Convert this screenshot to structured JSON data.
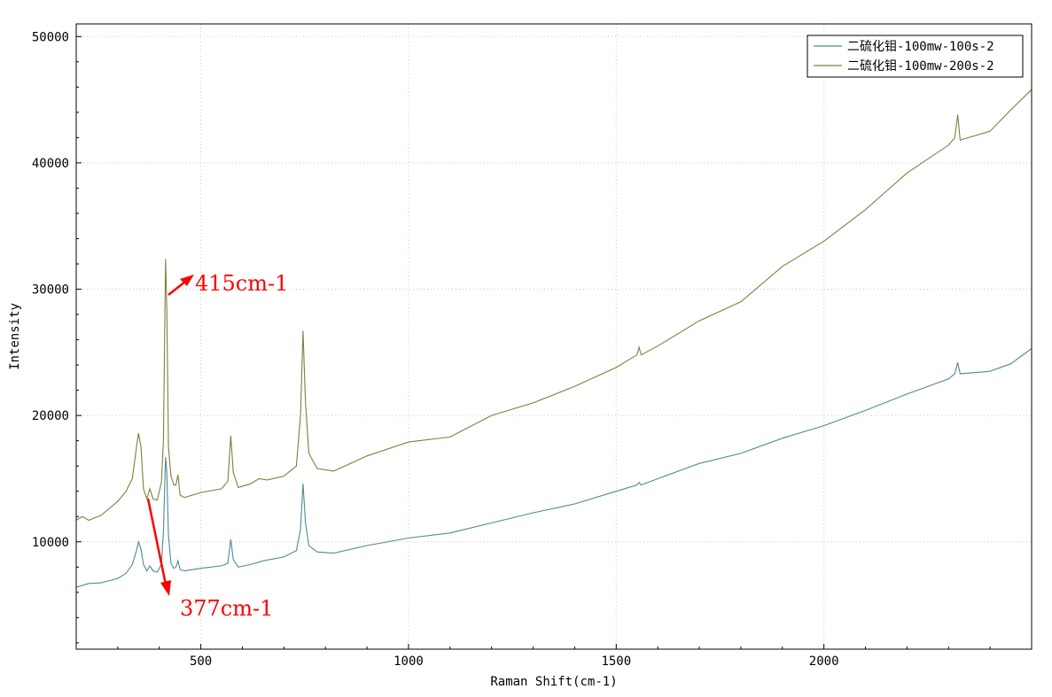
{
  "chart_data": {
    "type": "line",
    "title": "",
    "xlabel": "Raman Shift(cm-1)",
    "ylabel": "Intensity",
    "xlim": [
      200,
      2500
    ],
    "ylim": [
      1500,
      51000
    ],
    "x_ticks": [
      500,
      1000,
      1500,
      2000
    ],
    "x_tick_labels": [
      "500",
      "1000",
      "1500",
      "2000"
    ],
    "y_ticks": [
      10000,
      20000,
      30000,
      40000,
      50000
    ],
    "y_tick_labels": [
      "10000",
      "20000",
      "30000",
      "40000",
      "50000"
    ],
    "grid": true,
    "legend_position": "top-right",
    "series": [
      {
        "name": "二硫化钼-100mw-100s-2",
        "color": "#4e8a95",
        "points": [
          [
            200,
            6400
          ],
          [
            230,
            6700
          ],
          [
            260,
            6750
          ],
          [
            300,
            7100
          ],
          [
            320,
            7500
          ],
          [
            335,
            8200
          ],
          [
            345,
            9300
          ],
          [
            350,
            10000
          ],
          [
            356,
            9400
          ],
          [
            362,
            8200
          ],
          [
            370,
            7700
          ],
          [
            377,
            8100
          ],
          [
            385,
            7700
          ],
          [
            395,
            7600
          ],
          [
            405,
            8200
          ],
          [
            410,
            10800
          ],
          [
            415,
            16700
          ],
          [
            418,
            15500
          ],
          [
            422,
            10500
          ],
          [
            428,
            8300
          ],
          [
            435,
            7900
          ],
          [
            440,
            8000
          ],
          [
            445,
            8500
          ],
          [
            450,
            7800
          ],
          [
            460,
            7700
          ],
          [
            500,
            7900
          ],
          [
            550,
            8100
          ],
          [
            565,
            8300
          ],
          [
            572,
            10200
          ],
          [
            578,
            8600
          ],
          [
            590,
            8000
          ],
          [
            620,
            8200
          ],
          [
            650,
            8500
          ],
          [
            700,
            8800
          ],
          [
            730,
            9300
          ],
          [
            740,
            11000
          ],
          [
            746,
            14600
          ],
          [
            752,
            11500
          ],
          [
            760,
            9700
          ],
          [
            780,
            9200
          ],
          [
            820,
            9100
          ],
          [
            900,
            9700
          ],
          [
            1000,
            10300
          ],
          [
            1100,
            10700
          ],
          [
            1200,
            11500
          ],
          [
            1300,
            12300
          ],
          [
            1400,
            13000
          ],
          [
            1500,
            14000
          ],
          [
            1550,
            14500
          ],
          [
            1555,
            14700
          ],
          [
            1560,
            14500
          ],
          [
            1600,
            15000
          ],
          [
            1700,
            16200
          ],
          [
            1800,
            17000
          ],
          [
            1900,
            18200
          ],
          [
            2000,
            19200
          ],
          [
            2100,
            20400
          ],
          [
            2200,
            21700
          ],
          [
            2300,
            22900
          ],
          [
            2315,
            23300
          ],
          [
            2322,
            24200
          ],
          [
            2328,
            23300
          ],
          [
            2400,
            23500
          ],
          [
            2450,
            24100
          ],
          [
            2500,
            25300
          ]
        ]
      },
      {
        "name": "二硫化钼-100mw-200s-2",
        "color": "#7f7f3f",
        "points": [
          [
            200,
            11700
          ],
          [
            215,
            12000
          ],
          [
            230,
            11700
          ],
          [
            260,
            12100
          ],
          [
            300,
            13200
          ],
          [
            320,
            14000
          ],
          [
            335,
            15000
          ],
          [
            345,
            17500
          ],
          [
            350,
            18600
          ],
          [
            356,
            17500
          ],
          [
            362,
            14200
          ],
          [
            370,
            13400
          ],
          [
            377,
            14200
          ],
          [
            385,
            13400
          ],
          [
            395,
            13300
          ],
          [
            405,
            14700
          ],
          [
            410,
            18000
          ],
          [
            415,
            32400
          ],
          [
            418,
            28500
          ],
          [
            422,
            17500
          ],
          [
            428,
            15200
          ],
          [
            435,
            14500
          ],
          [
            440,
            14500
          ],
          [
            445,
            15300
          ],
          [
            450,
            13700
          ],
          [
            460,
            13500
          ],
          [
            500,
            13900
          ],
          [
            550,
            14200
          ],
          [
            565,
            14800
          ],
          [
            572,
            18400
          ],
          [
            578,
            15500
          ],
          [
            590,
            14300
          ],
          [
            620,
            14600
          ],
          [
            640,
            15000
          ],
          [
            660,
            14900
          ],
          [
            700,
            15200
          ],
          [
            730,
            16000
          ],
          [
            740,
            20000
          ],
          [
            746,
            26700
          ],
          [
            752,
            21000
          ],
          [
            760,
            17000
          ],
          [
            780,
            15800
          ],
          [
            820,
            15600
          ],
          [
            900,
            16800
          ],
          [
            1000,
            17900
          ],
          [
            1100,
            18300
          ],
          [
            1200,
            20000
          ],
          [
            1300,
            21000
          ],
          [
            1400,
            22300
          ],
          [
            1500,
            23800
          ],
          [
            1550,
            24800
          ],
          [
            1555,
            25400
          ],
          [
            1560,
            24800
          ],
          [
            1600,
            25500
          ],
          [
            1700,
            27500
          ],
          [
            1800,
            29000
          ],
          [
            1900,
            31800
          ],
          [
            2000,
            33800
          ],
          [
            2100,
            36300
          ],
          [
            2200,
            39200
          ],
          [
            2300,
            41400
          ],
          [
            2315,
            42000
          ],
          [
            2322,
            43800
          ],
          [
            2328,
            41800
          ],
          [
            2400,
            42500
          ],
          [
            2450,
            44200
          ],
          [
            2500,
            45800
          ]
        ]
      }
    ],
    "annotations": [
      {
        "text": "415cm-1",
        "color": "#ff0000"
      },
      {
        "text": "377cm-1",
        "color": "#ff0000"
      }
    ]
  }
}
